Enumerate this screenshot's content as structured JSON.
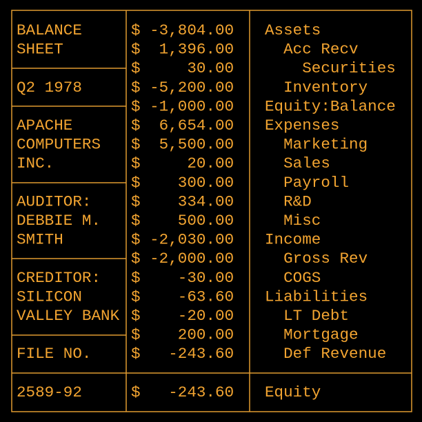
{
  "left_blocks": [
    {
      "lines": [
        "BALANCE",
        "SHEET"
      ]
    },
    {
      "lines": [
        "Q2 1978"
      ]
    },
    {
      "lines": [
        "APACHE",
        "COMPUTERS",
        "INC."
      ]
    },
    {
      "lines": [
        "AUDITOR:",
        "DEBBIE M.",
        "SMITH"
      ]
    },
    {
      "lines": [
        "CREDITOR:",
        "SILICON",
        "VALLEY BANK"
      ]
    },
    {
      "lines": [
        "FILE NO."
      ]
    }
  ],
  "rows": [
    {
      "amount": "$ -3,804.00",
      "account": "Assets"
    },
    {
      "amount": "$  1,396.00",
      "account": "  Acc Recv"
    },
    {
      "amount": "$     30.00",
      "account": "    Securities"
    },
    {
      "amount": "$ -5,200.00",
      "account": "  Inventory"
    },
    {
      "amount": "$ -1,000.00",
      "account": "Equity:Balance"
    },
    {
      "amount": "$  6,654.00",
      "account": "Expenses"
    },
    {
      "amount": "$  5,500.00",
      "account": "  Marketing"
    },
    {
      "amount": "$     20.00",
      "account": "  Sales"
    },
    {
      "amount": "$    300.00",
      "account": "  Payroll"
    },
    {
      "amount": "$    334.00",
      "account": "  R&D"
    },
    {
      "amount": "$    500.00",
      "account": "  Misc"
    },
    {
      "amount": "$ -2,030.00",
      "account": "Income"
    },
    {
      "amount": "$ -2,000.00",
      "account": "  Gross Rev"
    },
    {
      "amount": "$    -30.00",
      "account": "  COGS"
    },
    {
      "amount": "$    -63.60",
      "account": "Liabilities"
    },
    {
      "amount": "$    -20.00",
      "account": "  LT Debt"
    },
    {
      "amount": "$    200.00",
      "account": "  Mortgage"
    },
    {
      "amount": "$   -243.60",
      "account": "  Def Revenue"
    }
  ],
  "footer": {
    "file_number": "2589-92",
    "amount": "$   -243.60",
    "account": "Equity"
  }
}
